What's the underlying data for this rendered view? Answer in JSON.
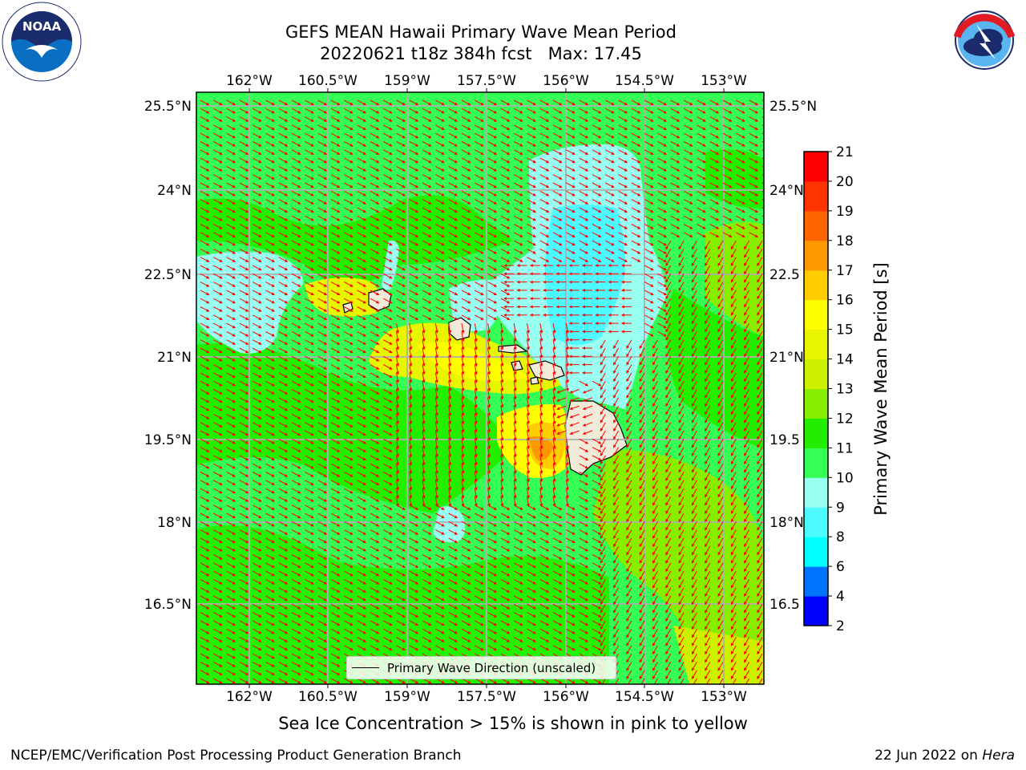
{
  "header": {
    "title_line1": "GEFS MEAN Hawaii Primary Wave Mean Period",
    "title_line2": "20220621 t18z 384h fcst   Max: 17.45"
  },
  "logos": {
    "noaa_text": "NOAA",
    "noaa_ring_text": "NATIONAL OCEANIC AND ATMOSPHERIC ADMINISTRATION · U.S. DEPARTMENT OF COMMERCE",
    "nws_ring_text": "NATIONAL WEATHER SERVICE"
  },
  "map": {
    "lon_ticks": [
      "162°W",
      "160.5°W",
      "159°W",
      "157.5°W",
      "156°W",
      "154.5°W",
      "153°W"
    ],
    "lat_ticks_left": [
      "25.5°N",
      "24°N",
      "22.5°N",
      "21°N",
      "19.5°N",
      "18°N",
      "16.5°N"
    ],
    "lat_ticks_right": [
      "25.5°N",
      "24°N",
      "22.5",
      "21°N",
      "19.5",
      "18°N",
      "16.5"
    ],
    "legend_label": "Primary Wave Direction (unscaled)",
    "arrow_color": "#ff0000",
    "land_color": "#f0ead8"
  },
  "colorbar": {
    "title": "Primary Wave Mean Period [s]",
    "levels": [
      "2",
      "4",
      "6",
      "8",
      "9",
      "10",
      "11",
      "12",
      "13",
      "14",
      "15",
      "16",
      "17",
      "18",
      "19",
      "20",
      "21"
    ],
    "colors": [
      "#0000ff",
      "#0073ff",
      "#00ffff",
      "#4dfaff",
      "#99fff0",
      "#33ff55",
      "#22ee00",
      "#88ee00",
      "#ccf000",
      "#e8f500",
      "#ffff00",
      "#ffcc00",
      "#ff9900",
      "#ff6600",
      "#ff3300",
      "#ff0000"
    ]
  },
  "note": "Sea Ice Concentration > 15% is shown in pink to yellow",
  "footer": {
    "left": "NCEP/EMC/Verification Post Processing Product Generation Branch",
    "right_prefix": "22 Jun 2022 on ",
    "right_host": "Hera"
  }
}
